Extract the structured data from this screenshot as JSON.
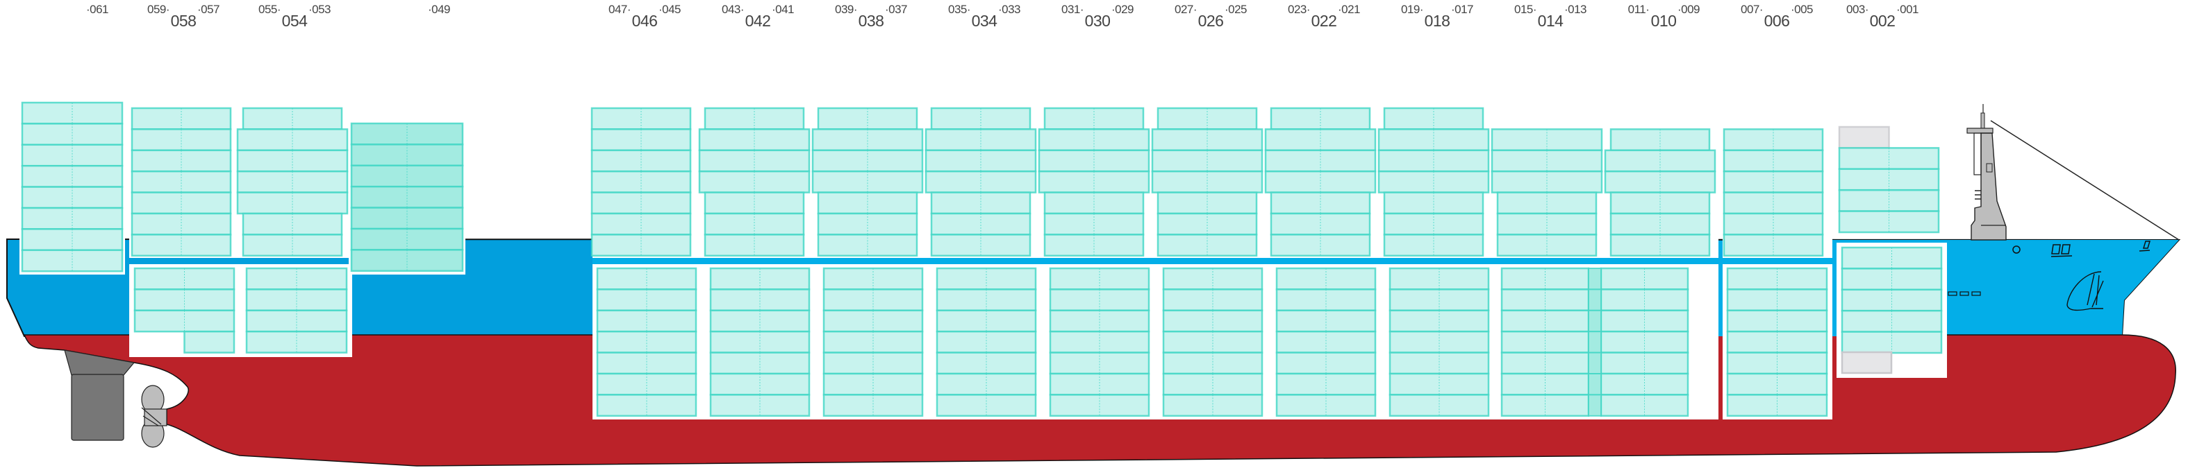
{
  "single_bay_labels": [
    "·061",
    "·049"
  ],
  "bays": [
    {
      "bay": "058",
      "fore": "059·",
      "aft": "·057"
    },
    {
      "bay": "054",
      "fore": "055·",
      "aft": "·053"
    },
    {
      "bay": "046",
      "fore": "047·",
      "aft": "·045"
    },
    {
      "bay": "042",
      "fore": "043·",
      "aft": "·041"
    },
    {
      "bay": "038",
      "fore": "039·",
      "aft": "·037"
    },
    {
      "bay": "034",
      "fore": "035·",
      "aft": "·033"
    },
    {
      "bay": "030",
      "fore": "031·",
      "aft": "·029"
    },
    {
      "bay": "026",
      "fore": "027·",
      "aft": "·025"
    },
    {
      "bay": "022",
      "fore": "023·",
      "aft": "·021"
    },
    {
      "bay": "018",
      "fore": "019·",
      "aft": "·017"
    },
    {
      "bay": "014",
      "fore": "015·",
      "aft": "·013"
    },
    {
      "bay": "010",
      "fore": "011·",
      "aft": "·009"
    },
    {
      "bay": "006",
      "fore": "007·",
      "aft": "·005"
    },
    {
      "bay": "002",
      "fore": "003·",
      "aft": "·001"
    }
  ],
  "deck_tiers": {
    "061": 8,
    "058": 7,
    "054": 7,
    "049": 7,
    "046": 7,
    "042": 7,
    "038": 7,
    "034": 7,
    "030": 7,
    "026": 7,
    "022": 7,
    "018": 7,
    "014": 6,
    "010": 6,
    "006": 6,
    "002": 4
  },
  "hold_tiers": {
    "058": 4,
    "054": 4,
    "046": 7,
    "042": 7,
    "038": 7,
    "034": 7,
    "030": 7,
    "026": 7,
    "022": 7,
    "018": 7,
    "014": 7,
    "006": 7,
    "002": 5
  },
  "colors": {
    "hull_upper": "#029fdd",
    "hull_bow": "#03aee8",
    "hull_lower": "#bb2229",
    "container_fill": "#c8f3ee",
    "container_stroke": "#3fd6c4",
    "container_dark": "#a3ebe1",
    "empty_slot": "#e6e6e8",
    "rudder": "#777777",
    "propeller": "#bdbdbd"
  }
}
